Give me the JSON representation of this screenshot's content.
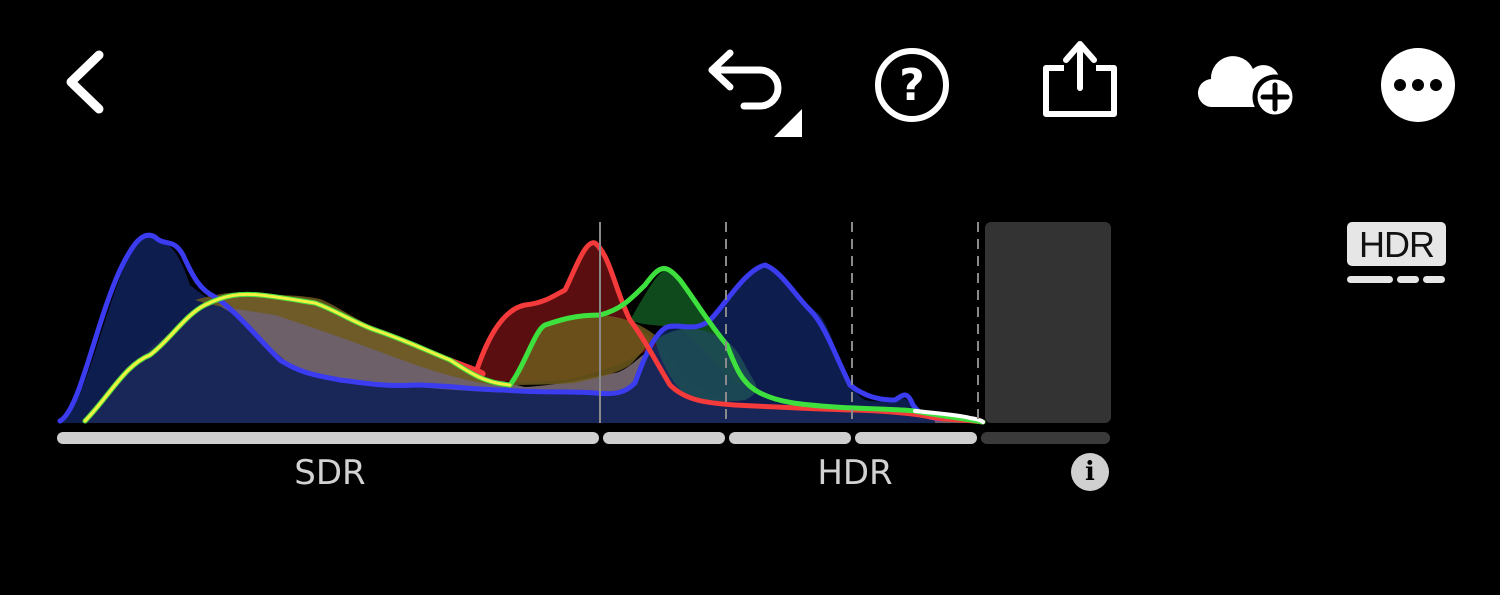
{
  "toolbar": {
    "icons": [
      "back-chevron-icon",
      "undo-icon",
      "help-icon",
      "share-icon",
      "cloud-add-icon",
      "more-icon"
    ],
    "help_glyph": "?"
  },
  "histogram": {
    "channels": [
      "blue",
      "red",
      "green",
      "luminance"
    ],
    "colors": {
      "blue": "#3b3bf0",
      "red": "#f43a3a",
      "green": "#3ee03e",
      "yellow": "#f1f142",
      "white_tail": "#ffffff",
      "luminance_fill": "#6e6068",
      "headroom": "#333333"
    },
    "zones": [
      "SDR",
      "+1",
      "+2",
      "+3",
      "headroom"
    ]
  },
  "labels": {
    "sdr": "SDR",
    "hdr": "HDR",
    "info": "i"
  },
  "hdr_toggle": {
    "label": "HDR",
    "state": "on"
  }
}
